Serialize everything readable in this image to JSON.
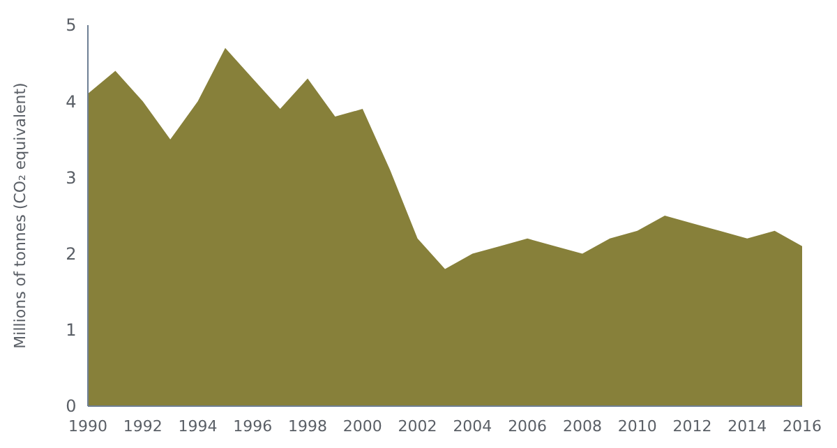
{
  "chart_data": {
    "type": "area",
    "ylabel": "Millions of tonnes (CO₂ equivalent)",
    "x": [
      1990,
      1991,
      1992,
      1993,
      1994,
      1995,
      1996,
      1997,
      1998,
      1999,
      2000,
      2001,
      2002,
      2003,
      2004,
      2005,
      2006,
      2007,
      2008,
      2009,
      2010,
      2011,
      2012,
      2013,
      2014,
      2015,
      2016
    ],
    "series": [
      {
        "color": "#87803a",
        "values": [
          4.1,
          4.4,
          4.0,
          3.5,
          4.0,
          4.7,
          4.3,
          3.9,
          4.3,
          3.8,
          3.9,
          3.1,
          2.2,
          1.8,
          2.0,
          2.1,
          2.2,
          2.1,
          2.0,
          2.2,
          2.3,
          2.5,
          2.4,
          2.3,
          2.2,
          2.3,
          2.1
        ]
      }
    ],
    "xlim": [
      1990,
      2016
    ],
    "xticks": [
      1990,
      1992,
      1994,
      1996,
      1998,
      2000,
      2002,
      2004,
      2006,
      2008,
      2010,
      2012,
      2014,
      2016
    ],
    "ylim": [
      0,
      5
    ],
    "yticks": [
      0,
      1,
      2,
      3,
      4,
      5
    ],
    "grid": false
  }
}
